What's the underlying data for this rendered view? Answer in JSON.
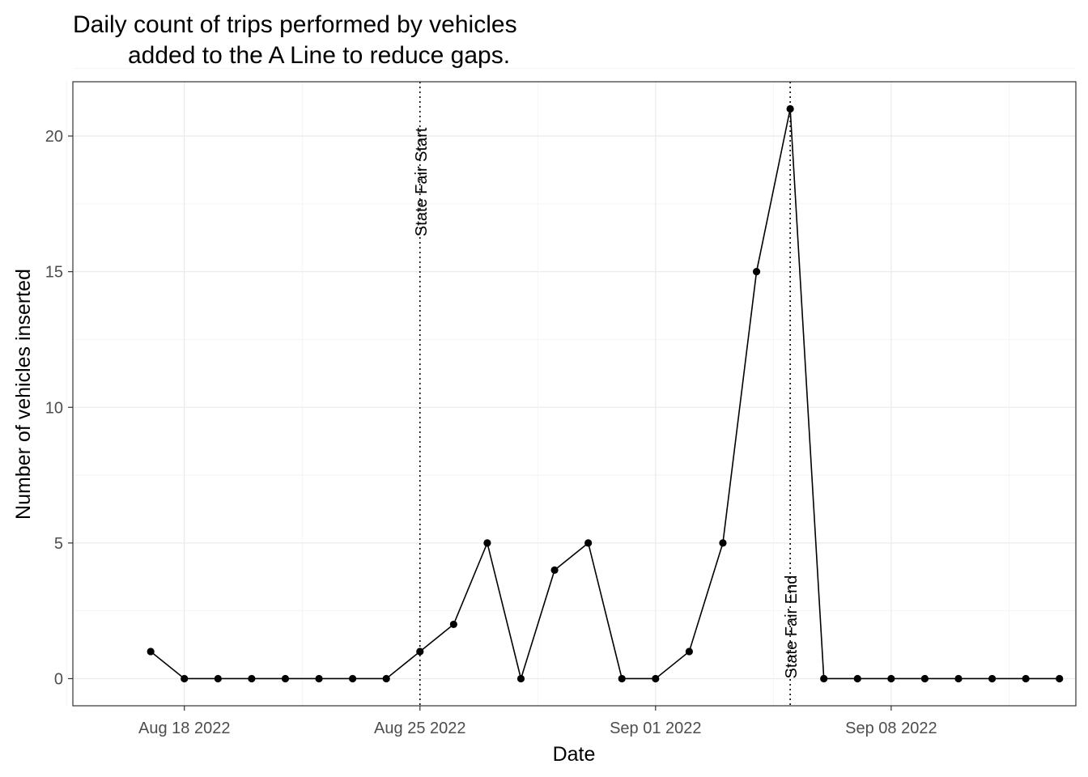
{
  "chart_data": {
    "type": "line",
    "title_lines": [
      "Daily count of trips performed by vehicles",
      "added to the A Line to reduce gaps."
    ],
    "xlabel": "Date",
    "ylabel": "Number of vehicles inserted",
    "x_ticks": [
      "Aug 18 2022",
      "Aug 25 2022",
      "Sep 01 2022",
      "Sep 08 2022"
    ],
    "x_tick_dates": [
      "2022-08-18",
      "2022-08-25",
      "2022-09-01",
      "2022-09-08"
    ],
    "y_ticks": [
      0,
      5,
      10,
      15,
      20
    ],
    "xlim": [
      "2022-08-15",
      "2022-09-13"
    ],
    "ylim": [
      -1,
      22
    ],
    "grid": true,
    "series": [
      {
        "x": [
          "2022-08-17",
          "2022-08-18",
          "2022-08-19",
          "2022-08-20",
          "2022-08-21",
          "2022-08-22",
          "2022-08-23",
          "2022-08-24",
          "2022-08-25",
          "2022-08-26",
          "2022-08-27",
          "2022-08-28",
          "2022-08-29",
          "2022-08-30",
          "2022-08-31",
          "2022-09-01",
          "2022-09-02",
          "2022-09-03",
          "2022-09-04",
          "2022-09-05",
          "2022-09-06",
          "2022-09-07",
          "2022-09-08",
          "2022-09-09",
          "2022-09-10",
          "2022-09-11",
          "2022-09-12",
          "2022-09-13"
        ],
        "values": [
          1,
          0,
          0,
          0,
          0,
          0,
          0,
          0,
          1,
          2,
          5,
          0,
          4,
          5,
          0,
          0,
          1,
          5,
          15,
          21,
          0,
          0,
          0,
          0,
          0,
          0,
          0,
          0
        ]
      }
    ],
    "annotations": [
      {
        "label": "State Fair Start",
        "date": "2022-08-25"
      },
      {
        "label": "State Fair End",
        "date": "2022-09-05"
      }
    ]
  }
}
